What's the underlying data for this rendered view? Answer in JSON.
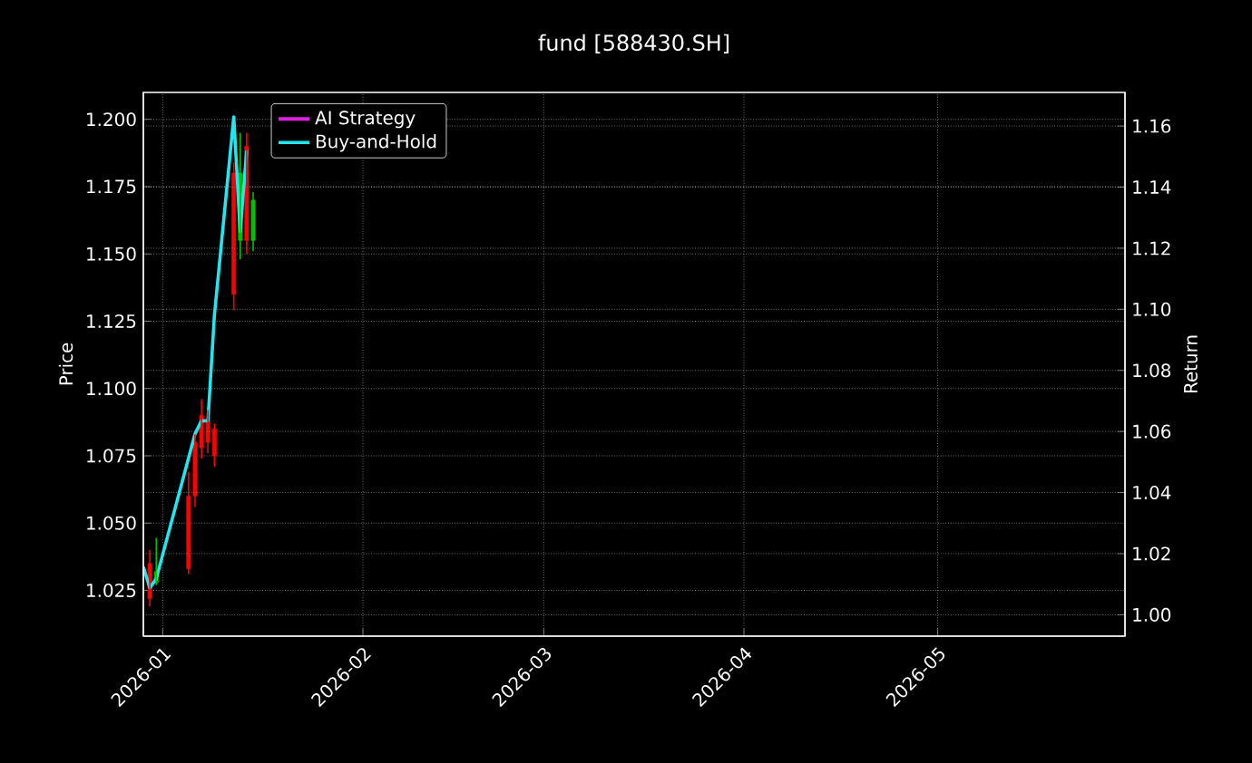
{
  "chart_data": {
    "type": "candlestick",
    "title": "fund [588430.SH]",
    "ylabel": "Price",
    "y2label": "Return",
    "x": [
      "2025-12-30",
      "2025-12-31",
      "2026-01-05",
      "2026-01-06",
      "2026-01-07",
      "2026-01-08",
      "2026-01-09",
      "2026-01-12",
      "2026-01-13",
      "2026-01-14",
      "2026-01-15"
    ],
    "ohlc": [
      [
        1.035,
        1.04,
        1.019,
        1.022
      ],
      [
        1.028,
        1.0445,
        1.027,
        1.032
      ],
      [
        1.06,
        1.069,
        1.031,
        1.033
      ],
      [
        1.08,
        1.083,
        1.056,
        1.06
      ],
      [
        1.09,
        1.096,
        1.074,
        1.078
      ],
      [
        1.088,
        1.092,
        1.076,
        1.08
      ],
      [
        1.085,
        1.087,
        1.071,
        1.075
      ],
      [
        1.18,
        1.184,
        1.129,
        1.135
      ],
      [
        1.155,
        1.195,
        1.148,
        1.18
      ],
      [
        1.19,
        1.195,
        1.15,
        1.155
      ],
      [
        1.155,
        1.173,
        1.151,
        1.17
      ]
    ],
    "colors": [
      "#ff0000",
      "#00c000",
      "#ff0000",
      "#ff0000",
      "#ff0000",
      "#ff0000",
      "#ff0000",
      "#ff0000",
      "#00c000",
      "#ff0000",
      "#00c000"
    ],
    "series": [
      {
        "name": "AI Strategy",
        "type": "line",
        "axis": "y2",
        "color": "#e020e0",
        "values": [
          null,
          null,
          null,
          null,
          null,
          null,
          null,
          null,
          null,
          null,
          null
        ]
      },
      {
        "name": "Buy-and-Hold",
        "type": "line",
        "axis": "y2",
        "color": "#22e5f0",
        "x": [
          "2025-12-29",
          "2025-12-30",
          "2025-12-31",
          "2026-01-05",
          "2026-01-06",
          "2026-01-07",
          "2026-01-08",
          "2026-01-09",
          "2026-01-12",
          "2026-01-13",
          "2026-01-14"
        ],
        "values": [
          1.0157,
          1.0088,
          1.0118,
          1.0513,
          1.0592,
          1.0635,
          1.0635,
          1.098,
          1.163,
          1.1254,
          1.152
        ]
      }
    ],
    "xlim": [
      "2025-12-29",
      "2026-05-30"
    ],
    "xticks": [
      {
        "value": "2026-01-01",
        "label": "2026-01"
      },
      {
        "value": "2026-02-01",
        "label": "2026-02"
      },
      {
        "value": "2026-03-01",
        "label": "2026-03"
      },
      {
        "value": "2026-04-01",
        "label": "2026-04"
      },
      {
        "value": "2026-05-01",
        "label": "2026-05"
      }
    ],
    "ylim": [
      1.008,
      1.21
    ],
    "yticks": [
      {
        "value": 1.025,
        "label": "1.025"
      },
      {
        "value": 1.05,
        "label": "1.050"
      },
      {
        "value": 1.075,
        "label": "1.075"
      },
      {
        "value": 1.1,
        "label": "1.100"
      },
      {
        "value": 1.125,
        "label": "1.125"
      },
      {
        "value": 1.15,
        "label": "1.150"
      },
      {
        "value": 1.175,
        "label": "1.175"
      },
      {
        "value": 1.2,
        "label": "1.200"
      }
    ],
    "y2lim": [
      0.993,
      1.171
    ],
    "y2ticks": [
      {
        "value": 1.0,
        "label": "1.00"
      },
      {
        "value": 1.02,
        "label": "1.02"
      },
      {
        "value": 1.04,
        "label": "1.04"
      },
      {
        "value": 1.06,
        "label": "1.06"
      },
      {
        "value": 1.08,
        "label": "1.08"
      },
      {
        "value": 1.1,
        "label": "1.10"
      },
      {
        "value": 1.12,
        "label": "1.12"
      },
      {
        "value": 1.14,
        "label": "1.14"
      },
      {
        "value": 1.16,
        "label": "1.16"
      }
    ],
    "grid": true,
    "legend": "top left",
    "marker": "none",
    "line_style": "solid"
  }
}
